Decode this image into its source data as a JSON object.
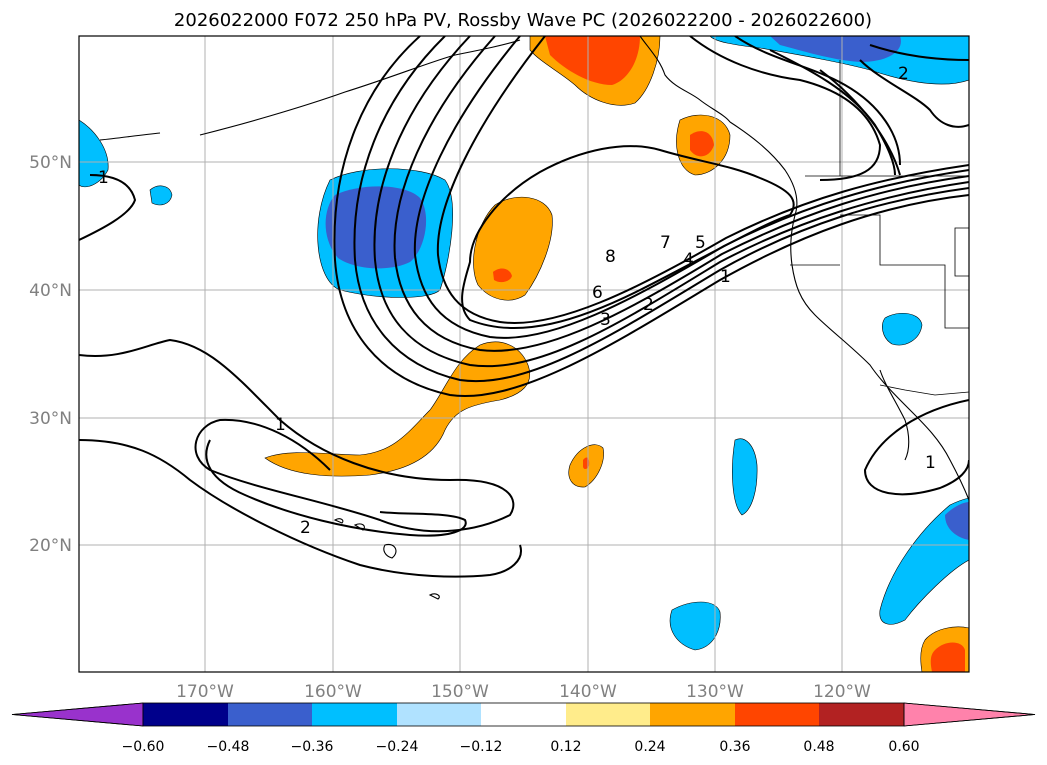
{
  "title": "2026022000 F072 250 hPa PV, Rossby Wave PC (2026022200 - 2026022600)",
  "colors": {
    "neg_60": "#9932cc",
    "neg_48": "#00008b",
    "neg_36": "#3a5fcd",
    "neg_24": "#00bfff",
    "neg_12": "#b0e2ff",
    "zero": "#ffffff",
    "pos_12": "#ffec8b",
    "pos_24": "#ffa500",
    "pos_36": "#ff4500",
    "pos_48": "#b22222",
    "pos_60": "#ff82ab"
  },
  "lat_labels": [
    "50°N",
    "40°N",
    "30°N",
    "20°N"
  ],
  "lon_labels": [
    "170°W",
    "160°W",
    "150°W",
    "140°W",
    "130°W",
    "120°W"
  ],
  "colorbar_labels": [
    "−0.60",
    "−0.48",
    "−0.36",
    "−0.24",
    "−0.12",
    "0.12",
    "0.24",
    "0.36",
    "0.48",
    "0.60"
  ],
  "contour_labels": [
    "1",
    "2",
    "3",
    "4",
    "5",
    "6",
    "7",
    "8",
    "1",
    "2",
    "2",
    "1",
    "1"
  ]
}
